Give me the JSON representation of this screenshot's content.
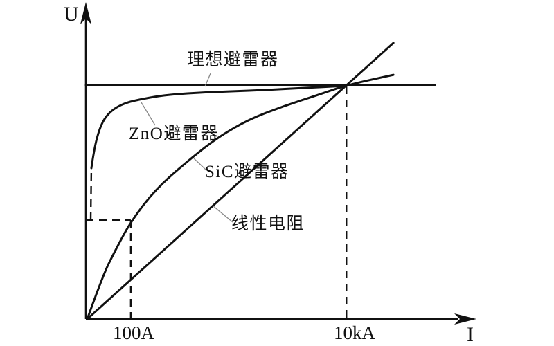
{
  "figure": {
    "background": "#ffffff",
    "line_color": "#111111",
    "leader_color": "#888888"
  },
  "chart_data": {
    "type": "line",
    "title": "",
    "xlabel": "I",
    "ylabel": "U",
    "grid": false,
    "legend_position": "inline-annotations",
    "axis_ranges": {
      "x": [
        0,
        1
      ],
      "y": [
        0,
        1.2
      ],
      "note": "normalized schematic axes; y = 1 is the ideal-arrester protection voltage level; curves converge at the 10kA point"
    },
    "x_ticks": [
      {
        "label": "100A",
        "x": 0.1287
      },
      {
        "label": "10kA",
        "x": 0.7465
      }
    ],
    "series": [
      {
        "key": "ideal",
        "name": "理想避雷器",
        "style": "solid",
        "points": [
          [
            0,
            1
          ],
          [
            1,
            1
          ]
        ]
      },
      {
        "key": "zno",
        "name": "ZnO避雷器",
        "style": "solid",
        "points": [
          [
            0.0158,
            0.645
          ],
          [
            0.0238,
            0.728
          ],
          [
            0.0396,
            0.817
          ],
          [
            0.0574,
            0.867
          ],
          [
            0.0832,
            0.902
          ],
          [
            0.1168,
            0.926
          ],
          [
            0.1624,
            0.941
          ],
          [
            0.2317,
            0.959
          ],
          [
            0.3505,
            0.97
          ],
          [
            0.4693,
            0.976
          ],
          [
            0.5881,
            0.985
          ],
          [
            0.6673,
            0.991
          ],
          [
            0.7465,
            0.997
          ]
        ]
      },
      {
        "key": "sic",
        "name": "SiC避雷器",
        "style": "solid",
        "points": [
          [
            0.004,
            0
          ],
          [
            0.0495,
            0.189
          ],
          [
            0.0832,
            0.29
          ],
          [
            0.1287,
            0.417
          ],
          [
            0.202,
            0.559
          ],
          [
            0.305,
            0.692
          ],
          [
            0.3822,
            0.781
          ],
          [
            0.4693,
            0.855
          ],
          [
            0.5683,
            0.911
          ],
          [
            0.6673,
            0.959
          ],
          [
            0.7465,
            1.0
          ],
          [
            0.8812,
            1.044
          ]
        ]
      },
      {
        "key": "linear",
        "name": "线性电阻",
        "style": "solid",
        "points": [
          [
            0.004,
            0
          ],
          [
            0.8812,
            1.1805
          ]
        ]
      }
    ],
    "guides": [
      {
        "key": "zno-knee-dashed",
        "points": [
          [
            0.0139,
            0.423
          ],
          [
            0.0158,
            0.645
          ]
        ]
      },
      {
        "key": "voltage-level-dashed",
        "points": [
          [
            0,
            0.423
          ],
          [
            0.1287,
            0.423
          ]
        ]
      },
      {
        "key": "current-100a-dashed",
        "points": [
          [
            0.1287,
            0.423
          ],
          [
            0.1287,
            0
          ]
        ]
      },
      {
        "key": "current-10ka-dashed",
        "points": [
          [
            0.7465,
            0.9941
          ],
          [
            0.7465,
            0
          ]
        ]
      }
    ],
    "annotations": [
      {
        "key": "ideal",
        "text": "理想避雷器",
        "leader": [
          [
            304,
            106
          ],
          [
            296,
            125
          ]
        ]
      },
      {
        "key": "zno",
        "text": "ZnO避雷器",
        "leader": [
          [
            204,
            148
          ],
          [
            224,
            181
          ]
        ]
      },
      {
        "key": "sic",
        "text": "SiC避雷器",
        "leader": [
          [
            280,
            229
          ],
          [
            297,
            245
          ]
        ]
      },
      {
        "key": "linear",
        "text": "线性电阻",
        "leader": [
          [
            307,
            297
          ],
          [
            336,
            321
          ]
        ]
      }
    ]
  }
}
